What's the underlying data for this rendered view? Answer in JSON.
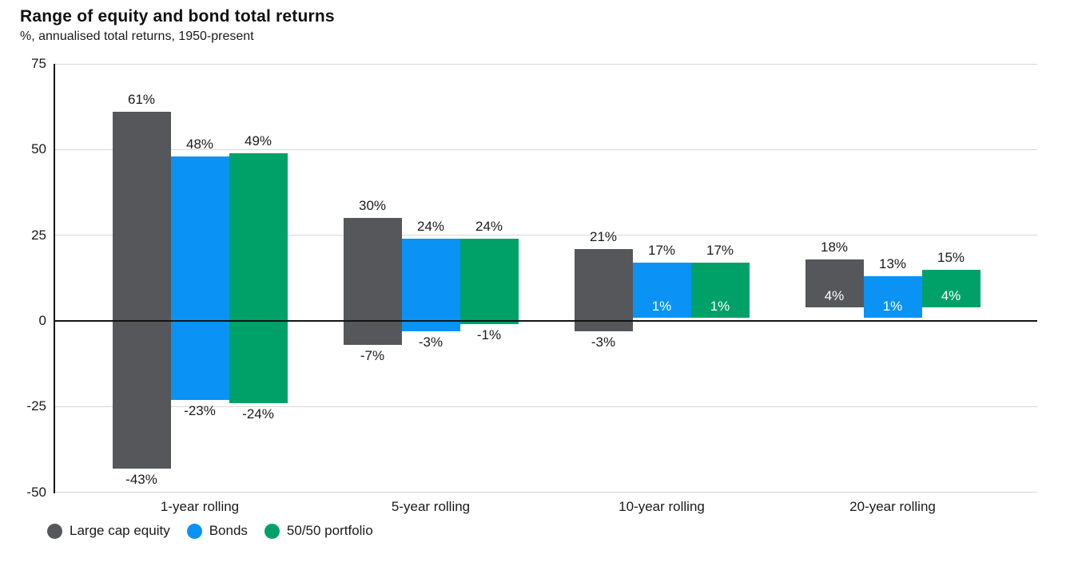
{
  "header": {
    "title": "Range of equity and bond total returns",
    "subtitle": "%, annualised total returns, 1950-present"
  },
  "chart_data": {
    "type": "bar",
    "subtype": "floating-range-column",
    "title": "Range of equity and bond total returns",
    "subtitle": "%, annualised total returns, 1950-present",
    "categories": [
      "1-year rolling",
      "5-year rolling",
      "10-year rolling",
      "20-year rolling"
    ],
    "series": [
      {
        "name": "Large cap equity",
        "color": "#55575B",
        "ranges_min_max": [
          [
            -43,
            61
          ],
          [
            -7,
            30
          ],
          [
            -3,
            21
          ],
          [
            4,
            18
          ]
        ]
      },
      {
        "name": "Bonds",
        "color": "#0A93F5",
        "ranges_min_max": [
          [
            -23,
            48
          ],
          [
            -3,
            24
          ],
          [
            1,
            17
          ],
          [
            1,
            13
          ]
        ]
      },
      {
        "name": "50/50 portfolio",
        "color": "#00A169",
        "ranges_min_max": [
          [
            -24,
            49
          ],
          [
            -1,
            24
          ],
          [
            1,
            17
          ],
          [
            4,
            15
          ]
        ]
      }
    ],
    "value_label_format": "{value}%",
    "y_axis": {
      "ticks": [
        75,
        50,
        25,
        0,
        -25,
        -50
      ],
      "ylim": [
        -50,
        75
      ]
    },
    "grid": "horizontal-light",
    "legend_position": "bottom-left",
    "legend": [
      "Large cap equity",
      "Bonds",
      "50/50 portfolio"
    ],
    "style": {
      "grid_color": "#d8d8d8",
      "axis_color": "#141414",
      "text_color": "#1a1a1a",
      "inside_label_color": "#ffffff"
    }
  }
}
